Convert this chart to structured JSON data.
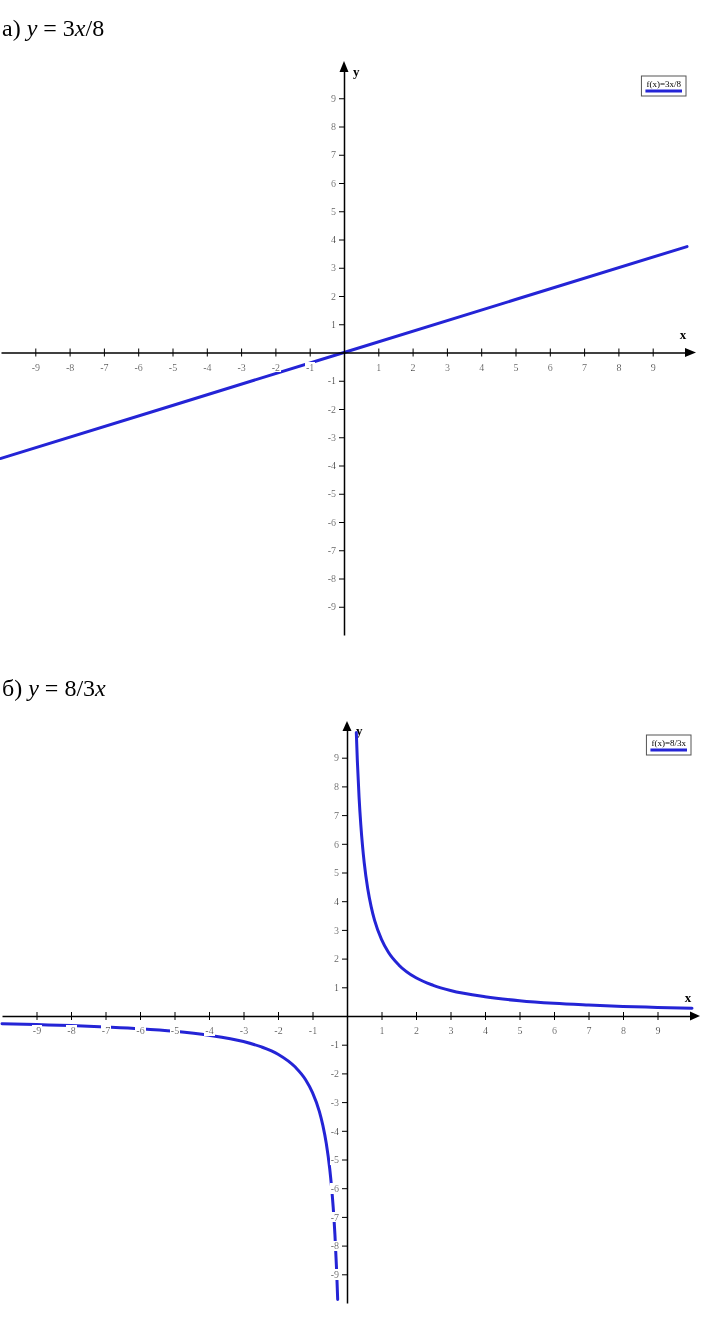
{
  "chart_data": [
    {
      "type": "line",
      "title": "а) y = 3x/8",
      "xlabel": "x",
      "ylabel": "y",
      "x": [
        -10,
        0,
        10
      ],
      "series": [
        {
          "name": "f(x)=3x/8",
          "color": "#2424d6",
          "values": [
            -3.75,
            0,
            3.75
          ]
        }
      ],
      "xlim": [
        -10,
        10
      ],
      "ylim": [
        -10,
        10
      ],
      "xticks": [
        -9,
        -8,
        -7,
        -6,
        -5,
        -4,
        -3,
        -2,
        -1,
        1,
        2,
        3,
        4,
        5,
        6,
        7,
        8,
        9
      ],
      "yticks": [
        -9,
        -8,
        -7,
        -6,
        -5,
        -4,
        -3,
        -2,
        -1,
        1,
        2,
        3,
        4,
        5,
        6,
        7,
        8,
        9
      ],
      "legend": "top right"
    },
    {
      "type": "line",
      "title": "б) y = 8/3x",
      "xlabel": "x",
      "ylabel": "y",
      "x": [
        -10,
        -9,
        -8,
        -7,
        -6,
        -5,
        -4,
        -3,
        -2.5,
        -2,
        -1.5,
        -1.2,
        -1,
        -0.8,
        -0.7,
        -0.6,
        -0.5,
        -0.45,
        -0.4,
        -0.35,
        -0.3,
        -0.27,
        0,
        0.27,
        0.3,
        0.35,
        0.4,
        0.45,
        0.5,
        0.6,
        0.7,
        0.8,
        1,
        1.2,
        1.5,
        2,
        2.5,
        3,
        4,
        5,
        6,
        7,
        8,
        9,
        10
      ],
      "series": [
        {
          "name": "f(x)=8/3x",
          "color": "#2424d6",
          "values": [
            -0.27,
            -0.3,
            -0.33,
            -0.38,
            -0.44,
            -0.53,
            -0.67,
            -0.89,
            -1.07,
            -1.33,
            -1.78,
            -2.22,
            -2.67,
            -3.33,
            -3.81,
            -4.44,
            -5.33,
            -5.93,
            -6.67,
            -7.62,
            -8.89,
            -9.88,
            null,
            9.88,
            8.89,
            7.62,
            6.67,
            5.93,
            5.33,
            4.44,
            3.81,
            3.33,
            2.67,
            2.22,
            1.78,
            1.33,
            1.07,
            0.89,
            0.67,
            0.53,
            0.44,
            0.38,
            0.33,
            0.3,
            0.27
          ]
        }
      ],
      "xlim": [
        -10,
        10
      ],
      "ylim": [
        -10,
        10
      ],
      "xticks": [
        -9,
        -8,
        -7,
        -6,
        -5,
        -4,
        -3,
        -2,
        -1,
        1,
        2,
        3,
        4,
        5,
        6,
        7,
        8,
        9
      ],
      "yticks": [
        -9,
        -8,
        -7,
        -6,
        -5,
        -4,
        -3,
        -2,
        -1,
        1,
        2,
        3,
        4,
        5,
        6,
        7,
        8,
        9
      ],
      "legend": "top right"
    }
  ]
}
